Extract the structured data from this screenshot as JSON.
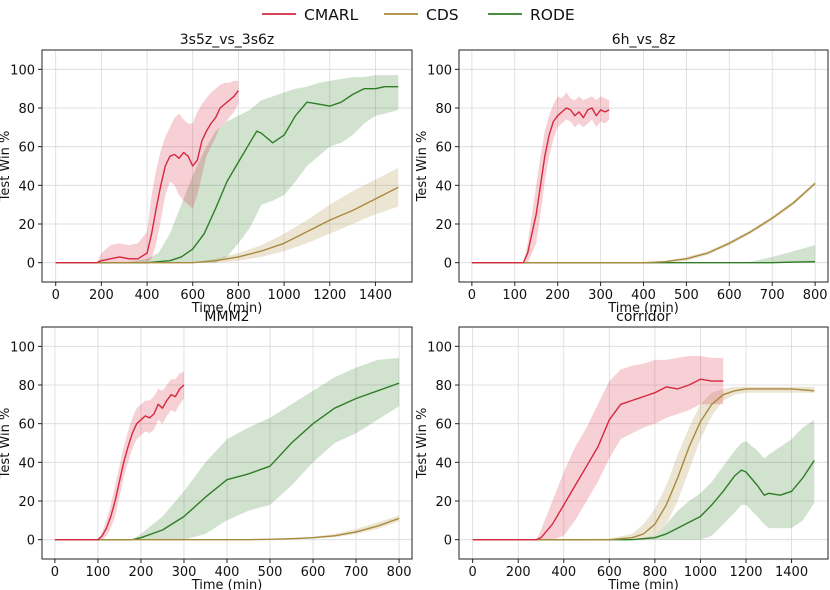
{
  "legend": [
    {
      "name": "CMARL",
      "color": "#d6283f"
    },
    {
      "name": "CDS",
      "color": "#a88a3c"
    },
    {
      "name": "RODE",
      "color": "#2f7d26"
    }
  ],
  "chart_data": [
    {
      "type": "line",
      "title": "3s5z_vs_3s6z",
      "xlabel": "Time (min)",
      "ylabel": "Test Win %",
      "xlim": [
        -60,
        1560
      ],
      "ylim": [
        -10,
        110
      ],
      "xticks": [
        0,
        200,
        400,
        600,
        800,
        1000,
        1200,
        1400
      ],
      "yticks": [
        0,
        20,
        40,
        60,
        80,
        100
      ],
      "series": [
        {
          "name": "CMARL",
          "x": [
            0,
            180,
            200,
            240,
            280,
            320,
            360,
            400,
            420,
            440,
            460,
            480,
            500,
            520,
            540,
            560,
            580,
            600,
            620,
            640,
            660,
            680,
            700,
            720,
            740,
            760,
            780,
            800
          ],
          "y": [
            0,
            0,
            1,
            2,
            3,
            2,
            2,
            5,
            15,
            28,
            40,
            50,
            55,
            56,
            54,
            57,
            55,
            50,
            53,
            63,
            68,
            72,
            75,
            80,
            82,
            84,
            86,
            89
          ],
          "upper": [
            0,
            0,
            5,
            9,
            10,
            9,
            10,
            16,
            35,
            48,
            58,
            65,
            70,
            75,
            77,
            74,
            72,
            72,
            78,
            82,
            85,
            88,
            90,
            92,
            93,
            93,
            94,
            94
          ],
          "lower": [
            0,
            0,
            0,
            0,
            0,
            0,
            0,
            0,
            2,
            10,
            22,
            35,
            42,
            40,
            35,
            32,
            30,
            28,
            35,
            45,
            55,
            60,
            65,
            70,
            72,
            75,
            78,
            82
          ]
        },
        {
          "name": "CDS",
          "x": [
            0,
            400,
            600,
            700,
            800,
            900,
            1000,
            1100,
            1200,
            1300,
            1400,
            1500
          ],
          "y": [
            0,
            0,
            0,
            1,
            3,
            6,
            10,
            16,
            22,
            27,
            33,
            39
          ],
          "upper": [
            0,
            0,
            0,
            2,
            5,
            9,
            15,
            22,
            30,
            37,
            43,
            49
          ],
          "lower": [
            0,
            0,
            0,
            0,
            1,
            3,
            6,
            10,
            15,
            20,
            25,
            29
          ]
        },
        {
          "name": "RODE",
          "x": [
            0,
            300,
            400,
            450,
            500,
            550,
            600,
            650,
            700,
            750,
            800,
            850,
            880,
            900,
            950,
            1000,
            1050,
            1100,
            1150,
            1200,
            1250,
            1300,
            1350,
            1400,
            1440,
            1470,
            1500
          ],
          "y": [
            0,
            0,
            0,
            0.5,
            1,
            3,
            7,
            15,
            28,
            42,
            52,
            62,
            68,
            67,
            62,
            66,
            76,
            83,
            82,
            81,
            83,
            87,
            90,
            90,
            91,
            91,
            91
          ],
          "upper": [
            0,
            0,
            2,
            5,
            15,
            30,
            45,
            58,
            68,
            73,
            76,
            79,
            82,
            84,
            86,
            88,
            90,
            91,
            93,
            94,
            95,
            96,
            96,
            97,
            97,
            97,
            97
          ],
          "lower": [
            0,
            0,
            0,
            0,
            0,
            0,
            0,
            0,
            0,
            3,
            10,
            18,
            25,
            30,
            32,
            35,
            42,
            50,
            55,
            60,
            62,
            66,
            72,
            76,
            77,
            78,
            79
          ]
        }
      ]
    },
    {
      "type": "line",
      "title": "6h_vs_8z",
      "xlabel": "Time (min)",
      "ylabel": "Test Win %",
      "xlim": [
        -30,
        830
      ],
      "ylim": [
        -10,
        110
      ],
      "xticks": [
        0,
        100,
        200,
        300,
        400,
        500,
        600,
        700,
        800
      ],
      "yticks": [
        0,
        20,
        40,
        60,
        80,
        100
      ],
      "series": [
        {
          "name": "CMARL",
          "x": [
            0,
            120,
            130,
            140,
            150,
            160,
            170,
            180,
            190,
            200,
            210,
            220,
            230,
            240,
            250,
            260,
            270,
            280,
            290,
            300,
            310,
            320
          ],
          "y": [
            0,
            0,
            5,
            15,
            25,
            40,
            55,
            66,
            73,
            76,
            78,
            80,
            79,
            76,
            78,
            75,
            79,
            80,
            76,
            79,
            78,
            79
          ],
          "upper": [
            0,
            0,
            10,
            25,
            40,
            55,
            68,
            76,
            82,
            86,
            85,
            88,
            85,
            84,
            86,
            84,
            85,
            86,
            84,
            86,
            85,
            84
          ],
          "lower": [
            0,
            0,
            0,
            5,
            10,
            25,
            42,
            55,
            64,
            70,
            72,
            74,
            73,
            70,
            72,
            70,
            72,
            74,
            70,
            73,
            72,
            74
          ]
        },
        {
          "name": "CDS",
          "x": [
            0,
            400,
            450,
            500,
            550,
            600,
            650,
            700,
            750,
            800
          ],
          "y": [
            0,
            0,
            0.5,
            2,
            5,
            10,
            16,
            23,
            31,
            41
          ],
          "upper": [
            0,
            0,
            1,
            3,
            6,
            11,
            17,
            24,
            32,
            42
          ],
          "lower": [
            0,
            0,
            0,
            1,
            4,
            9,
            15,
            22,
            30,
            40
          ]
        },
        {
          "name": "RODE",
          "x": [
            0,
            600,
            650,
            700,
            750,
            800
          ],
          "y": [
            0,
            0,
            0,
            0,
            0.3,
            0.5
          ],
          "upper": [
            0,
            0,
            0.5,
            3,
            6,
            9
          ],
          "lower": [
            0,
            0,
            0,
            0,
            0,
            0
          ]
        }
      ]
    },
    {
      "type": "line",
      "title": "MMM2",
      "xlabel": "Time (min)",
      "ylabel": "Test Win %",
      "xlim": [
        -30,
        830
      ],
      "ylim": [
        -10,
        110
      ],
      "xticks": [
        0,
        100,
        200,
        300,
        400,
        500,
        600,
        700,
        800
      ],
      "yticks": [
        0,
        20,
        40,
        60,
        80,
        100
      ],
      "series": [
        {
          "name": "CMARL",
          "x": [
            0,
            100,
            110,
            120,
            130,
            140,
            150,
            160,
            170,
            180,
            190,
            200,
            210,
            220,
            230,
            240,
            250,
            260,
            270,
            280,
            290,
            300
          ],
          "y": [
            0,
            0,
            2,
            6,
            12,
            20,
            30,
            40,
            48,
            55,
            60,
            62,
            64,
            63,
            65,
            70,
            68,
            72,
            75,
            74,
            78,
            80
          ],
          "upper": [
            0,
            0,
            4,
            10,
            18,
            28,
            38,
            48,
            56,
            63,
            68,
            70,
            72,
            72,
            74,
            78,
            77,
            80,
            83,
            83,
            86,
            87
          ],
          "lower": [
            0,
            0,
            0,
            2,
            6,
            12,
            22,
            32,
            40,
            47,
            52,
            54,
            56,
            55,
            57,
            62,
            60,
            64,
            67,
            66,
            70,
            73
          ]
        },
        {
          "name": "CDS",
          "x": [
            0,
            450,
            500,
            550,
            600,
            650,
            700,
            750,
            800
          ],
          "y": [
            0,
            0,
            0.2,
            0.5,
            1,
            2,
            4,
            7,
            11
          ],
          "upper": [
            0,
            0,
            0.3,
            0.8,
            1.5,
            3,
            5.5,
            9,
            12.5
          ],
          "lower": [
            0,
            0,
            0,
            0.2,
            0.6,
            1.3,
            3,
            5.5,
            9.5
          ]
        },
        {
          "name": "RODE",
          "x": [
            0,
            180,
            200,
            250,
            300,
            350,
            400,
            450,
            500,
            550,
            600,
            650,
            700,
            750,
            800
          ],
          "y": [
            0,
            0,
            1,
            5,
            12,
            22,
            31,
            34,
            38,
            50,
            60,
            68,
            73,
            77,
            81
          ],
          "upper": [
            0,
            0,
            3,
            12,
            25,
            40,
            52,
            58,
            63,
            70,
            77,
            84,
            89,
            93,
            94
          ],
          "lower": [
            0,
            0,
            0,
            0,
            0,
            3,
            10,
            15,
            18,
            28,
            40,
            50,
            55,
            62,
            69
          ]
        }
      ]
    },
    {
      "type": "line",
      "title": "corridor",
      "xlabel": "Time (min)",
      "ylabel": "Test Win %",
      "xlim": [
        -60,
        1560
      ],
      "ylim": [
        -10,
        110
      ],
      "xticks": [
        0,
        200,
        400,
        600,
        800,
        1000,
        1200,
        1400
      ],
      "yticks": [
        0,
        20,
        40,
        60,
        80,
        100
      ],
      "series": [
        {
          "name": "CMARL",
          "x": [
            0,
            280,
            300,
            350,
            400,
            450,
            500,
            550,
            600,
            650,
            700,
            750,
            800,
            850,
            900,
            950,
            1000,
            1050,
            1100
          ],
          "y": [
            0,
            0,
            1,
            8,
            18,
            28,
            38,
            48,
            62,
            70,
            72,
            74,
            76,
            79,
            78,
            80,
            83,
            82,
            82
          ],
          "upper": [
            0,
            0,
            5,
            20,
            35,
            48,
            58,
            70,
            82,
            88,
            90,
            91,
            93,
            93,
            94,
            95,
            95,
            94,
            94
          ],
          "lower": [
            0,
            0,
            0,
            0,
            2,
            10,
            20,
            30,
            42,
            52,
            55,
            58,
            60,
            63,
            65,
            67,
            70,
            70,
            70
          ]
        },
        {
          "name": "CDS",
          "x": [
            0,
            600,
            700,
            750,
            800,
            850,
            900,
            950,
            1000,
            1050,
            1100,
            1150,
            1200,
            1250,
            1300,
            1400,
            1500
          ],
          "y": [
            0,
            0,
            1,
            3,
            8,
            18,
            32,
            48,
            61,
            70,
            75,
            77,
            78,
            78,
            78,
            78,
            77
          ],
          "upper": [
            0,
            0.5,
            3,
            8,
            16,
            28,
            44,
            58,
            70,
            76,
            78,
            79,
            79,
            79,
            79,
            79,
            79
          ],
          "lower": [
            0,
            0,
            0,
            0,
            2,
            8,
            20,
            36,
            52,
            64,
            72,
            75,
            76,
            76,
            76,
            76,
            76
          ]
        },
        {
          "name": "RODE",
          "x": [
            0,
            700,
            800,
            850,
            900,
            950,
            1000,
            1050,
            1100,
            1150,
            1180,
            1200,
            1250,
            1280,
            1300,
            1350,
            1400,
            1450,
            1500
          ],
          "y": [
            0,
            0,
            1,
            3,
            6,
            9,
            12,
            18,
            25,
            33,
            36,
            35,
            28,
            23,
            24,
            23,
            25,
            32,
            41
          ],
          "upper": [
            0,
            0,
            2,
            8,
            15,
            20,
            24,
            30,
            38,
            46,
            50,
            51,
            46,
            42,
            44,
            48,
            52,
            58,
            62
          ],
          "lower": [
            0,
            0,
            0,
            0,
            0,
            0,
            0,
            2,
            8,
            14,
            18,
            18,
            12,
            8,
            6,
            6,
            6,
            10,
            19
          ]
        }
      ]
    }
  ]
}
